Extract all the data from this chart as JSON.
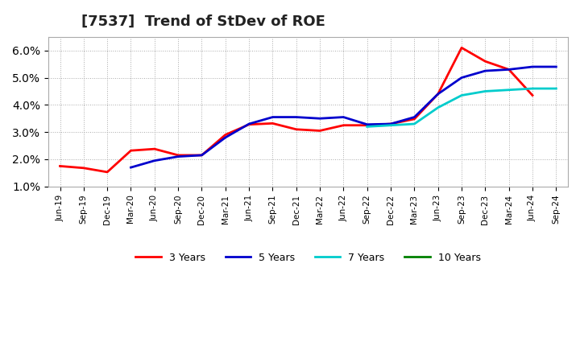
{
  "title": "[7537]  Trend of StDev of ROE",
  "title_fontsize": 13,
  "background_color": "#ffffff",
  "grid_color": "#aaaaaa",
  "ylim": [
    0.01,
    0.065
  ],
  "yticks": [
    0.01,
    0.02,
    0.03,
    0.04,
    0.05,
    0.06
  ],
  "series": {
    "3 Years": {
      "color": "#ff0000",
      "data": [
        [
          "Jun-19",
          0.0175
        ],
        [
          "Sep-19",
          0.0168
        ],
        [
          "Dec-19",
          0.0153
        ],
        [
          "Mar-20",
          0.023
        ],
        [
          "Jun-20",
          0.0238
        ],
        [
          "Sep-20",
          0.0213
        ],
        [
          "Dec-20",
          0.0215
        ],
        [
          "Mar-21",
          0.029
        ],
        [
          "Jun-21",
          0.0328
        ],
        [
          "Sep-21",
          0.033
        ],
        [
          "Dec-21",
          0.0307
        ],
        [
          "Mar-22",
          0.0305
        ],
        [
          "Jun-22",
          0.0325
        ],
        [
          "Sep-22",
          0.0325
        ],
        [
          "Dec-22",
          0.033
        ],
        [
          "Mar-23",
          0.0345
        ],
        [
          "Jun-23",
          0.043
        ],
        [
          "Sep-23",
          0.061
        ],
        [
          "Dec-23",
          0.056
        ],
        [
          "Mar-24",
          0.053
        ],
        [
          "Jun-24",
          0.0435
        ],
        [
          "Sep-24",
          null
        ]
      ]
    },
    "5 Years": {
      "color": "#0000cd",
      "data": [
        [
          "Jun-19",
          null
        ],
        [
          "Sep-19",
          null
        ],
        [
          "Dec-19",
          null
        ],
        [
          "Mar-20",
          null
        ],
        [
          "Jun-20",
          null
        ],
        [
          "Sep-20",
          null
        ],
        [
          "Dec-20",
          null
        ],
        [
          "Mar-21",
          null
        ],
        [
          "Jun-21",
          null
        ],
        [
          "Sep-21",
          null
        ],
        [
          "Dec-21",
          null
        ],
        [
          "Mar-22",
          null
        ],
        [
          "Jun-22",
          null
        ],
        [
          "Sep-22",
          null
        ],
        [
          "Dec-22",
          null
        ],
        [
          "Mar-23",
          null
        ],
        [
          "Jun-23",
          null
        ],
        [
          "Sep-23",
          null
        ],
        [
          "Dec-23",
          null
        ],
        [
          "Mar-24",
          null
        ],
        [
          "Jun-24",
          null
        ],
        [
          "Sep-24",
          null
        ]
      ]
    },
    "7 Years": {
      "color": "#00cccc",
      "data": []
    },
    "10 Years": {
      "color": "#008000",
      "data": []
    }
  },
  "x_labels": [
    "Jun-19",
    "Sep-19",
    "Dec-19",
    "Mar-20",
    "Jun-20",
    "Sep-20",
    "Dec-20",
    "Mar-21",
    "Jun-21",
    "Sep-21",
    "Dec-21",
    "Mar-22",
    "Jun-22",
    "Sep-22",
    "Dec-22",
    "Mar-23",
    "Jun-23",
    "Sep-23",
    "Dec-23",
    "Mar-24",
    "Jun-24",
    "Sep-24"
  ]
}
